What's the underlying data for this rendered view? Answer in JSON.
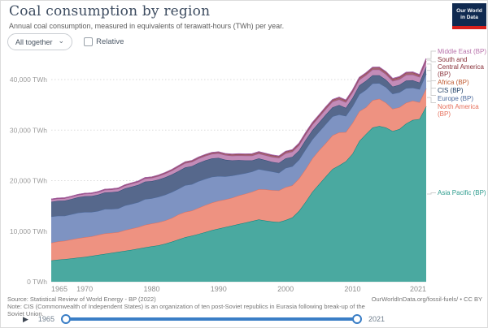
{
  "logo": {
    "line1": "Our World",
    "line2": "in Data"
  },
  "controls": {
    "dropdown_label": "All together",
    "relative_label": "Relative"
  },
  "chart_data": {
    "type": "area",
    "stacked": true,
    "title": "Coal consumption by region",
    "subtitle": "Annual coal consumption, measured in equivalents of terawatt-hours (TWh) per year.",
    "unit": "TWh",
    "grid": true,
    "legend_position": "right",
    "ylim": [
      0,
      45000
    ],
    "x_ticks": [
      1965,
      1970,
      1980,
      1990,
      2000,
      2010,
      2021
    ],
    "y_ticks": [
      {
        "value": 0,
        "label": "0 TWh"
      },
      {
        "value": 10000,
        "label": "10,000 TWh"
      },
      {
        "value": 20000,
        "label": "20,000 TWh"
      },
      {
        "value": 30000,
        "label": "30,000 TWh"
      },
      {
        "value": 40000,
        "label": "40,000 TWh"
      }
    ],
    "years": [
      1965,
      1966,
      1967,
      1968,
      1969,
      1970,
      1971,
      1972,
      1973,
      1974,
      1975,
      1976,
      1977,
      1978,
      1979,
      1980,
      1981,
      1982,
      1983,
      1984,
      1985,
      1986,
      1987,
      1988,
      1989,
      1990,
      1991,
      1992,
      1993,
      1994,
      1995,
      1996,
      1997,
      1998,
      1999,
      2000,
      2001,
      2002,
      2003,
      2004,
      2005,
      2006,
      2007,
      2008,
      2009,
      2010,
      2011,
      2012,
      2013,
      2014,
      2015,
      2016,
      2017,
      2018,
      2019,
      2020,
      2021
    ],
    "series": [
      {
        "id": "asia-pacific",
        "name": "Asia Pacific (BP)",
        "fill": "#4aa9a0",
        "stroke": "#00847e",
        "values": [
          4200,
          4350,
          4450,
          4600,
          4750,
          4900,
          5100,
          5300,
          5500,
          5700,
          5900,
          6100,
          6300,
          6550,
          6800,
          7000,
          7200,
          7500,
          7900,
          8350,
          8800,
          9100,
          9450,
          9800,
          10200,
          10500,
          10800,
          11100,
          11400,
          11700,
          12000,
          12300,
          12100,
          11900,
          11800,
          12200,
          12700,
          14000,
          15800,
          17800,
          19300,
          20800,
          22300,
          23000,
          23800,
          25300,
          27800,
          29200,
          30500,
          30800,
          30500,
          29800,
          30200,
          31300,
          32000,
          32200,
          34700
        ]
      },
      {
        "id": "north-america",
        "name": "North America (BP)",
        "fill": "#ee9281",
        "stroke": "#e56e5a",
        "values": [
          3500,
          3600,
          3650,
          3750,
          3850,
          3900,
          3850,
          3950,
          4050,
          3950,
          3900,
          4100,
          4200,
          4250,
          4450,
          4500,
          4550,
          4600,
          4700,
          4950,
          5000,
          4950,
          5150,
          5350,
          5450,
          5500,
          5450,
          5500,
          5650,
          5700,
          5800,
          6000,
          6150,
          6200,
          6250,
          6500,
          6350,
          6400,
          6500,
          6600,
          6700,
          6600,
          6650,
          6550,
          5800,
          6100,
          5900,
          5300,
          5400,
          5400,
          4900,
          4400,
          4300,
          4100,
          3800,
          3300,
          3500
        ]
      },
      {
        "id": "europe",
        "name": "Europe (BP)",
        "fill": "#7e93c2",
        "stroke": "#4c6a9c",
        "values": [
          5200,
          5100,
          4950,
          5000,
          5050,
          5000,
          4850,
          4750,
          4850,
          4750,
          4700,
          4900,
          4900,
          4950,
          5100,
          5000,
          5050,
          5100,
          5150,
          5100,
          5300,
          5250,
          5300,
          5200,
          5100,
          4900,
          4600,
          4400,
          4200,
          4100,
          4000,
          4000,
          3800,
          3700,
          3500,
          3800,
          3800,
          3750,
          3900,
          3800,
          3700,
          3800,
          3750,
          3550,
          3200,
          3300,
          3400,
          3500,
          3350,
          3100,
          3100,
          3000,
          3000,
          2900,
          2600,
          2600,
          2950
        ]
      },
      {
        "id": "cis",
        "name": "CIS (BP)",
        "fill": "#56688c",
        "stroke": "#2d4a73",
        "values": [
          2900,
          2950,
          3000,
          3000,
          3050,
          3100,
          3150,
          3200,
          3250,
          3300,
          3350,
          3350,
          3400,
          3400,
          3450,
          3400,
          3400,
          3450,
          3450,
          3500,
          3500,
          3550,
          3600,
          3650,
          3650,
          3600,
          3300,
          3000,
          2800,
          2500,
          2200,
          2100,
          2000,
          1900,
          1950,
          1900,
          1850,
          1800,
          1850,
          1800,
          1800,
          1850,
          1800,
          1850,
          1600,
          1650,
          1750,
          1750,
          1600,
          1550,
          1450,
          1400,
          1450,
          1500,
          1450,
          1300,
          1350
        ]
      },
      {
        "id": "africa",
        "name": "Africa (BP)",
        "fill": "#c38cb8",
        "stroke": "#a2559c",
        "values": [
          450,
          455,
          460,
          465,
          470,
          480,
          495,
          510,
          525,
          540,
          550,
          570,
          590,
          610,
          630,
          650,
          690,
          730,
          770,
          810,
          850,
          860,
          870,
          880,
          890,
          900,
          910,
          920,
          930,
          940,
          950,
          960,
          970,
          980,
          990,
          1000,
          1020,
          1040,
          1060,
          1080,
          1100,
          1100,
          1110,
          1110,
          1100,
          1100,
          1100,
          1110,
          1110,
          1120,
          1100,
          1110,
          1110,
          1120,
          1130,
          1100,
          1150
        ]
      },
      {
        "id": "south-central-america",
        "name": "South and Central America (BP)",
        "fill": "#a4666f",
        "stroke": "#883039",
        "values": [
          80,
          82,
          84,
          86,
          88,
          90,
          94,
          98,
          102,
          106,
          110,
          118,
          126,
          134,
          142,
          150,
          166,
          182,
          198,
          214,
          230,
          234,
          238,
          242,
          246,
          250,
          260,
          270,
          280,
          290,
          300,
          306,
          312,
          318,
          324,
          330,
          334,
          338,
          342,
          346,
          350,
          356,
          362,
          368,
          374,
          380,
          388,
          396,
          404,
          412,
          420,
          420,
          420,
          425,
          425,
          400,
          420
        ]
      },
      {
        "id": "middle-east",
        "name": "Middle East (BP)",
        "fill": "#cf9fca",
        "stroke": "#a05fa5",
        "values": [
          15,
          16,
          17,
          18,
          19,
          20,
          21,
          22,
          23,
          24,
          25,
          26,
          27,
          28,
          29,
          30,
          32,
          34,
          36,
          38,
          40,
          42,
          44,
          46,
          48,
          50,
          53,
          56,
          59,
          62,
          65,
          68,
          71,
          74,
          77,
          80,
          82,
          84,
          86,
          88,
          90,
          91,
          92,
          93,
          94,
          95,
          96,
          97,
          98,
          99,
          100,
          101,
          102,
          103,
          104,
          104,
          105
        ]
      }
    ]
  },
  "legend": {
    "items": [
      {
        "id": "middle-east",
        "lines": [
          "Middle East (BP)"
        ],
        "color": "#b873ab"
      },
      {
        "id": "south-central-america",
        "lines": [
          "South and",
          "Central America",
          "(BP)"
        ],
        "color": "#883039"
      },
      {
        "id": "africa",
        "lines": [
          "Africa (BP)"
        ],
        "color": "#c05b31"
      },
      {
        "id": "cis",
        "lines": [
          "CIS (BP)"
        ],
        "color": "#1d3d63"
      },
      {
        "id": "europe",
        "lines": [
          "Europe (BP)"
        ],
        "color": "#4c6a9c"
      },
      {
        "id": "north-america",
        "lines": [
          "North America",
          "(BP)"
        ],
        "color": "#e56e5a"
      },
      {
        "id": "asia-pacific",
        "lines": [
          "Asia Pacific (BP)"
        ],
        "color": "#2d9c8e"
      }
    ]
  },
  "footer": {
    "source": "Source: Statistical Review of World Energy - BP (2022)",
    "note": "Note: CIS (Commonwealth of Independent States) is an organization of ten post-Soviet republics in Eurasia following break-up of the Soviet Union.",
    "credit": "OurWorldInData.org/fossil-fuels/ • CC BY"
  },
  "timeline": {
    "start_label": "1965",
    "end_label": "2021"
  }
}
